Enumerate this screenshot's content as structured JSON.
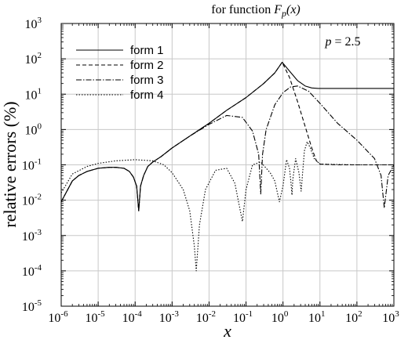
{
  "chart_data": {
    "type": "line",
    "title": "for function F_p(x)",
    "title_prefix": "for function ",
    "title_math": {
      "symbol": "F",
      "subscript": "p",
      "arg": "(x)"
    },
    "xlabel": "x",
    "ylabel": "relative errors (%)",
    "x_scale": "log",
    "y_scale": "log",
    "xlim": [
      1e-06,
      1000.0
    ],
    "ylim": [
      1e-05,
      1000.0
    ],
    "grid": true,
    "legend_position": "top-left",
    "annotation": "p = 2.5",
    "x_tick_labels": [
      {
        "base": "10",
        "exp": "-6"
      },
      {
        "base": "10",
        "exp": "-5"
      },
      {
        "base": "10",
        "exp": "-4"
      },
      {
        "base": "10",
        "exp": "-3"
      },
      {
        "base": "10",
        "exp": "-2"
      },
      {
        "base": "10",
        "exp": "-1"
      },
      {
        "base": "10",
        "exp": "0"
      },
      {
        "base": "10",
        "exp": "1"
      },
      {
        "base": "10",
        "exp": "2"
      },
      {
        "base": "10",
        "exp": "3"
      }
    ],
    "y_tick_labels": [
      {
        "base": "10",
        "exp": "-5"
      },
      {
        "base": "10",
        "exp": "-4"
      },
      {
        "base": "10",
        "exp": "-3"
      },
      {
        "base": "10",
        "exp": "-2"
      },
      {
        "base": "10",
        "exp": "-1"
      },
      {
        "base": "10",
        "exp": "0"
      },
      {
        "base": "10",
        "exp": "1"
      },
      {
        "base": "10",
        "exp": "2"
      },
      {
        "base": "10",
        "exp": "3"
      }
    ],
    "series": [
      {
        "name": "form 1",
        "dash": "solid",
        "x": [
          1e-06,
          2e-06,
          3e-06,
          5e-06,
          1e-05,
          2e-05,
          3e-05,
          5e-05,
          7e-05,
          9e-05,
          0.00011,
          0.000125,
          0.00014,
          0.00017,
          0.00022,
          0.0003,
          0.0005,
          0.001,
          0.003,
          0.01,
          0.03,
          0.1,
          0.3,
          0.6,
          0.95,
          1.5,
          2.5,
          4,
          6,
          9,
          20,
          100,
          1000
        ],
        "y": [
          0.009,
          0.035,
          0.05,
          0.065,
          0.08,
          0.085,
          0.085,
          0.08,
          0.065,
          0.045,
          0.025,
          0.005,
          0.025,
          0.05,
          0.09,
          0.12,
          0.17,
          0.3,
          0.65,
          1.5,
          3.5,
          8,
          20,
          40,
          80,
          45,
          24,
          17,
          15,
          14.5,
          14.5,
          14.5,
          14.5
        ]
      },
      {
        "name": "form 2",
        "dash": "dashed",
        "x": [
          1e-06,
          2e-06,
          3e-06,
          5e-06,
          1e-05,
          2e-05,
          3e-05,
          5e-05,
          7e-05,
          9e-05,
          0.00011,
          0.000125,
          0.00014,
          0.00017,
          0.00022,
          0.0003,
          0.0005,
          0.001,
          0.003,
          0.01,
          0.03,
          0.1,
          0.3,
          0.6,
          0.95,
          1.5,
          2.5,
          4,
          6,
          8,
          10,
          30,
          100,
          1000
        ],
        "y": [
          0.009,
          0.035,
          0.05,
          0.065,
          0.08,
          0.085,
          0.085,
          0.08,
          0.065,
          0.045,
          0.025,
          0.005,
          0.025,
          0.05,
          0.09,
          0.12,
          0.17,
          0.3,
          0.65,
          1.5,
          3.5,
          8,
          20,
          40,
          80,
          30,
          6,
          1.2,
          0.3,
          0.13,
          0.105,
          0.1,
          0.1,
          0.1
        ]
      },
      {
        "name": "form 3",
        "dash": "dashdot",
        "x": [
          1e-06,
          2e-06,
          3e-06,
          5e-06,
          1e-05,
          2e-05,
          3e-05,
          5e-05,
          7e-05,
          9e-05,
          0.00011,
          0.000125,
          0.00014,
          0.00017,
          0.00022,
          0.0003,
          0.0005,
          0.001,
          0.003,
          0.01,
          0.03,
          0.08,
          0.15,
          0.22,
          0.25,
          0.28,
          0.35,
          0.6,
          1,
          1.6,
          2.5,
          5,
          10,
          30,
          100,
          300,
          450,
          550,
          700,
          1000
        ],
        "y": [
          0.009,
          0.035,
          0.05,
          0.065,
          0.08,
          0.085,
          0.085,
          0.08,
          0.065,
          0.045,
          0.025,
          0.005,
          0.025,
          0.05,
          0.09,
          0.12,
          0.17,
          0.3,
          0.65,
          1.4,
          2.5,
          2.2,
          0.9,
          0.2,
          0.015,
          0.2,
          1,
          5,
          11,
          16,
          17,
          12,
          5.5,
          1.5,
          0.5,
          0.15,
          0.05,
          0.006,
          0.05,
          0.1
        ]
      },
      {
        "name": "form 4",
        "dash": "dotted",
        "x": [
          1e-06,
          2e-06,
          5e-06,
          1e-05,
          3e-05,
          0.0001,
          0.0003,
          0.0006,
          0.001,
          0.002,
          0.003,
          0.004,
          0.0045,
          0.0055,
          0.008,
          0.015,
          0.03,
          0.05,
          0.07,
          0.08,
          0.1,
          0.15,
          0.25,
          0.45,
          0.6,
          0.8,
          1.0,
          1.25,
          1.5,
          1.65,
          1.75,
          1.85,
          2.2,
          2.7,
          3.1,
          3.4,
          3.8,
          4.5,
          5.5,
          7,
          10,
          100,
          1000
        ],
        "y": [
          0.016,
          0.055,
          0.09,
          0.11,
          0.13,
          0.14,
          0.13,
          0.1,
          0.06,
          0.02,
          0.005,
          0.0005,
          0.0001,
          0.002,
          0.02,
          0.07,
          0.08,
          0.03,
          0.005,
          0.0025,
          0.02,
          0.1,
          0.12,
          0.06,
          0.035,
          0.009,
          0.025,
          0.14,
          0.08,
          0.03,
          0.014,
          0.04,
          0.15,
          0.06,
          0.018,
          0.06,
          0.25,
          0.45,
          0.3,
          0.15,
          0.105,
          0.1,
          0.1
        ]
      }
    ]
  }
}
